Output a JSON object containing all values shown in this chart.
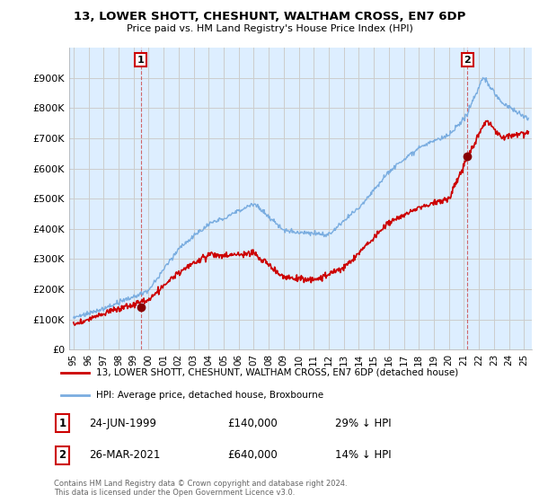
{
  "title": "13, LOWER SHOTT, CHESHUNT, WALTHAM CROSS, EN7 6DP",
  "subtitle": "Price paid vs. HM Land Registry's House Price Index (HPI)",
  "yticks": [
    0,
    100000,
    200000,
    300000,
    400000,
    500000,
    600000,
    700000,
    800000,
    900000
  ],
  "ytick_labels": [
    "£0",
    "£100K",
    "£200K",
    "£300K",
    "£400K",
    "£500K",
    "£600K",
    "£700K",
    "£800K",
    "£900K"
  ],
  "ylim": [
    0,
    1000000
  ],
  "xlim_start": 1994.7,
  "xlim_end": 2025.5,
  "sale1_date": 1999.48,
  "sale1_price": 140000,
  "sale1_label": "1",
  "sale2_date": 2021.23,
  "sale2_price": 640000,
  "sale2_label": "2",
  "legend_line1": "13, LOWER SHOTT, CHESHUNT, WALTHAM CROSS, EN7 6DP (detached house)",
  "legend_line2": "HPI: Average price, detached house, Broxbourne",
  "note1_num": "1",
  "note1_date": "24-JUN-1999",
  "note1_price": "£140,000",
  "note1_hpi": "29% ↓ HPI",
  "note2_num": "2",
  "note2_date": "26-MAR-2021",
  "note2_price": "£640,000",
  "note2_hpi": "14% ↓ HPI",
  "footer": "Contains HM Land Registry data © Crown copyright and database right 2024.\nThis data is licensed under the Open Government Licence v3.0.",
  "line_color_red": "#cc0000",
  "line_color_blue": "#7aade0",
  "fill_color_blue": "#ddeeff",
  "marker_color_red": "#880000",
  "bg_color": "#ffffff",
  "grid_color": "#cccccc"
}
